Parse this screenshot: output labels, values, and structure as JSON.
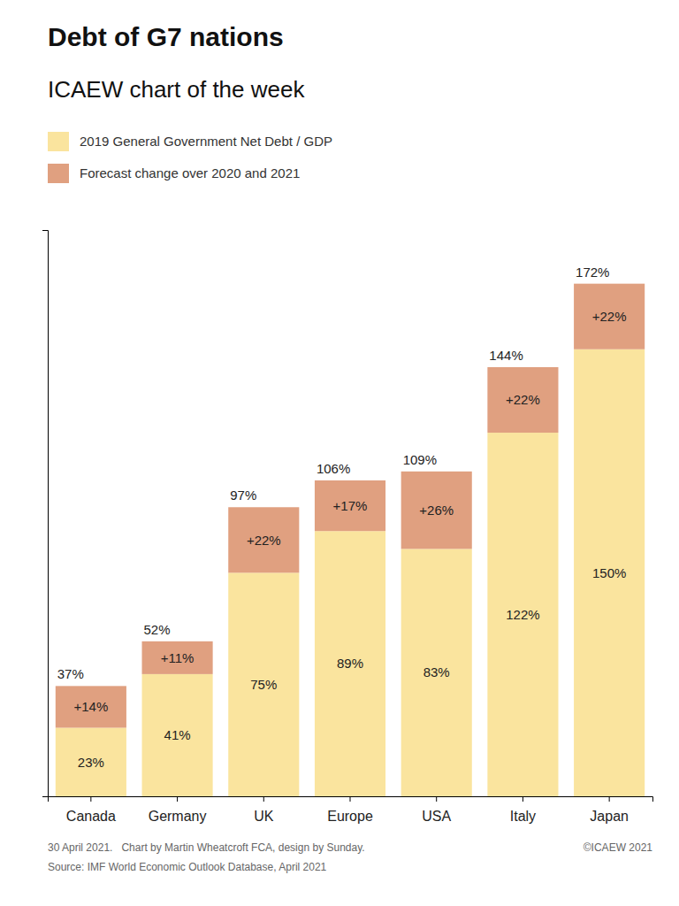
{
  "chart_data": {
    "type": "bar",
    "stacked": true,
    "title": "Debt of G7 nations",
    "subtitle": "ICAEW chart of the week",
    "categories": [
      "Canada",
      "Germany",
      "UK",
      "Europe",
      "USA",
      "Italy",
      "Japan"
    ],
    "series": [
      {
        "name": "2019 General Government Net Debt / GDP",
        "color": "#FAE49E",
        "values": [
          23,
          41,
          75,
          89,
          83,
          122,
          150
        ],
        "value_labels": [
          "23%",
          "41%",
          "75%",
          "89%",
          "83%",
          "122%",
          "150%"
        ]
      },
      {
        "name": "Forecast change over 2020 and 2021",
        "color": "#E0A080",
        "values": [
          14,
          11,
          22,
          17,
          26,
          22,
          22
        ],
        "value_labels": [
          "+14%",
          "+11%",
          "+22%",
          "+17%",
          "+26%",
          "+22%",
          "+22%"
        ]
      }
    ],
    "totals": [
      37,
      52,
      97,
      106,
      109,
      144,
      172
    ],
    "total_labels": [
      "37%",
      "52%",
      "97%",
      "106%",
      "109%",
      "144%",
      "172%"
    ],
    "ylim": [
      0,
      190
    ],
    "yticks": [],
    "tick_labels": "x",
    "data_labels": true,
    "legend": "top-left",
    "grid": false,
    "annotations": [
      "30 April 2021.   Chart by Martin Wheatcroft FCA, design by Sunday.",
      "Source: IMF World Economic Outlook Database, April 2021",
      "©ICAEW 2021"
    ]
  }
}
